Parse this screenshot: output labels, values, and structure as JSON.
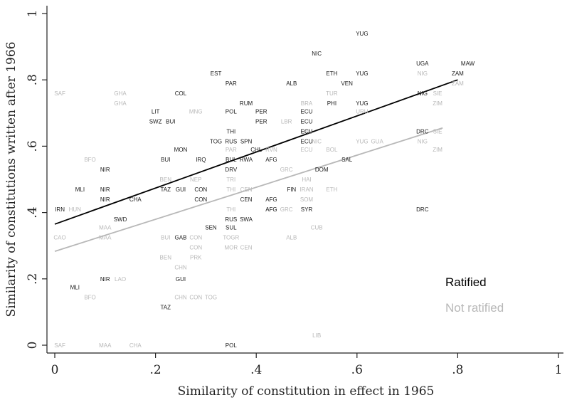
{
  "chart_data": {
    "type": "scatter",
    "title": "",
    "xlabel": "Similarity of constitution in effect in 1965",
    "ylabel": "Similarity of constitutions written after 1966",
    "xlim": [
      0,
      1
    ],
    "ylim": [
      0,
      1
    ],
    "x_ticks": [
      0,
      0.2,
      0.4,
      0.6,
      0.8,
      1
    ],
    "x_tick_labels": [
      "0",
      ".2",
      ".4",
      ".6",
      ".8",
      "1"
    ],
    "y_ticks": [
      0,
      0.2,
      0.4,
      0.6,
      0.8,
      1
    ],
    "y_tick_labels": [
      "0",
      ".2",
      ".4",
      ".6",
      ".8",
      "1"
    ],
    "legend_position": "bottom-right",
    "legend": [
      {
        "label": "Ratified",
        "color": "#000000"
      },
      {
        "label": "Not ratified",
        "color": "#b8b8b8"
      }
    ],
    "series": [
      {
        "name": "Ratified",
        "color": "#1a1a1a",
        "fit_line": {
          "x": [
            0,
            0.8
          ],
          "y": [
            0.365,
            0.8
          ]
        },
        "points": [
          {
            "label": "YUG",
            "x": 0.61,
            "y": 0.94
          },
          {
            "label": "NIC",
            "x": 0.52,
            "y": 0.88
          },
          {
            "label": "UGA",
            "x": 0.73,
            "y": 0.85
          },
          {
            "label": "MAW",
            "x": 0.82,
            "y": 0.85
          },
          {
            "label": "EST",
            "x": 0.32,
            "y": 0.82
          },
          {
            "label": "ETH",
            "x": 0.55,
            "y": 0.82
          },
          {
            "label": "YUG",
            "x": 0.61,
            "y": 0.82
          },
          {
            "label": "ZAM",
            "x": 0.8,
            "y": 0.82
          },
          {
            "label": "PAR",
            "x": 0.35,
            "y": 0.79
          },
          {
            "label": "ALB",
            "x": 0.47,
            "y": 0.79
          },
          {
            "label": "VEN",
            "x": 0.58,
            "y": 0.79
          },
          {
            "label": "COL",
            "x": 0.25,
            "y": 0.76
          },
          {
            "label": "NIG",
            "x": 0.73,
            "y": 0.76
          },
          {
            "label": "RUM",
            "x": 0.38,
            "y": 0.73
          },
          {
            "label": "PHI",
            "x": 0.55,
            "y": 0.73
          },
          {
            "label": "YUG",
            "x": 0.61,
            "y": 0.73
          },
          {
            "label": "LIT",
            "x": 0.2,
            "y": 0.705
          },
          {
            "label": "POL",
            "x": 0.35,
            "y": 0.705
          },
          {
            "label": "PER",
            "x": 0.41,
            "y": 0.705
          },
          {
            "label": "ECU",
            "x": 0.5,
            "y": 0.705
          },
          {
            "label": "SWZ",
            "x": 0.2,
            "y": 0.675
          },
          {
            "label": "BUI",
            "x": 0.23,
            "y": 0.675
          },
          {
            "label": "PER",
            "x": 0.41,
            "y": 0.675
          },
          {
            "label": "ECU",
            "x": 0.5,
            "y": 0.675
          },
          {
            "label": "THI",
            "x": 0.35,
            "y": 0.645
          },
          {
            "label": "ECU",
            "x": 0.5,
            "y": 0.645
          },
          {
            "label": "DRC",
            "x": 0.73,
            "y": 0.645
          },
          {
            "label": "TOG",
            "x": 0.32,
            "y": 0.615
          },
          {
            "label": "RUS",
            "x": 0.35,
            "y": 0.615
          },
          {
            "label": "SPN",
            "x": 0.38,
            "y": 0.615
          },
          {
            "label": "ECU",
            "x": 0.5,
            "y": 0.615
          },
          {
            "label": "MON",
            "x": 0.25,
            "y": 0.59
          },
          {
            "label": "CHL",
            "x": 0.4,
            "y": 0.59
          },
          {
            "label": "BUI",
            "x": 0.22,
            "y": 0.56
          },
          {
            "label": "IRQ",
            "x": 0.29,
            "y": 0.56
          },
          {
            "label": "BUL",
            "x": 0.35,
            "y": 0.56
          },
          {
            "label": "RWA",
            "x": 0.38,
            "y": 0.56
          },
          {
            "label": "AFG",
            "x": 0.43,
            "y": 0.56
          },
          {
            "label": "SAL",
            "x": 0.58,
            "y": 0.56
          },
          {
            "label": "NIR",
            "x": 0.1,
            "y": 0.53
          },
          {
            "label": "DRV",
            "x": 0.35,
            "y": 0.53
          },
          {
            "label": "DOM",
            "x": 0.53,
            "y": 0.53
          },
          {
            "label": "MLI",
            "x": 0.05,
            "y": 0.47
          },
          {
            "label": "NIR",
            "x": 0.1,
            "y": 0.47
          },
          {
            "label": "TAZ",
            "x": 0.22,
            "y": 0.47
          },
          {
            "label": "GUI",
            "x": 0.25,
            "y": 0.47
          },
          {
            "label": "CON",
            "x": 0.29,
            "y": 0.47
          },
          {
            "label": "FIN",
            "x": 0.47,
            "y": 0.47
          },
          {
            "label": "NIR",
            "x": 0.1,
            "y": 0.44
          },
          {
            "label": "CHA",
            "x": 0.16,
            "y": 0.44
          },
          {
            "label": "CON",
            "x": 0.29,
            "y": 0.44
          },
          {
            "label": "CEN",
            "x": 0.38,
            "y": 0.44
          },
          {
            "label": "AFG",
            "x": 0.43,
            "y": 0.44
          },
          {
            "label": "IRN",
            "x": 0.01,
            "y": 0.41
          },
          {
            "label": "AFG",
            "x": 0.43,
            "y": 0.41
          },
          {
            "label": "SYR",
            "x": 0.5,
            "y": 0.41
          },
          {
            "label": "DRC",
            "x": 0.73,
            "y": 0.41
          },
          {
            "label": "SWD",
            "x": 0.13,
            "y": 0.38
          },
          {
            "label": "RUS",
            "x": 0.35,
            "y": 0.38
          },
          {
            "label": "SWA",
            "x": 0.38,
            "y": 0.38
          },
          {
            "label": "SEN",
            "x": 0.31,
            "y": 0.355
          },
          {
            "label": "SUL",
            "x": 0.35,
            "y": 0.355
          },
          {
            "label": "GAB",
            "x": 0.25,
            "y": 0.325
          },
          {
            "label": "NIR",
            "x": 0.1,
            "y": 0.2
          },
          {
            "label": "GUI",
            "x": 0.25,
            "y": 0.2
          },
          {
            "label": "MLI",
            "x": 0.04,
            "y": 0.175
          },
          {
            "label": "TAZ",
            "x": 0.22,
            "y": 0.115
          },
          {
            "label": "POL",
            "x": 0.35,
            "y": 0
          }
        ]
      },
      {
        "name": "Not ratified",
        "color": "#b8b8b8",
        "fit_line": {
          "x": [
            0,
            0.77
          ],
          "y": [
            0.283,
            0.655
          ]
        },
        "points": [
          {
            "label": "NIG",
            "x": 0.73,
            "y": 0.82
          },
          {
            "label": "ZAM",
            "x": 0.8,
            "y": 0.79
          },
          {
            "label": "SAF",
            "x": 0.01,
            "y": 0.76
          },
          {
            "label": "GHA",
            "x": 0.13,
            "y": 0.76
          },
          {
            "label": "TUR",
            "x": 0.55,
            "y": 0.76
          },
          {
            "label": "SIE",
            "x": 0.76,
            "y": 0.76
          },
          {
            "label": "GHA",
            "x": 0.13,
            "y": 0.73
          },
          {
            "label": "BRA",
            "x": 0.5,
            "y": 0.73
          },
          {
            "label": "ZIM",
            "x": 0.76,
            "y": 0.73
          },
          {
            "label": "MNG",
            "x": 0.28,
            "y": 0.705
          },
          {
            "label": "URU",
            "x": 0.61,
            "y": 0.705
          },
          {
            "label": "LBR",
            "x": 0.46,
            "y": 0.675
          },
          {
            "label": "PAN",
            "x": 0.5,
            "y": 0.645
          },
          {
            "label": "SIE",
            "x": 0.76,
            "y": 0.645
          },
          {
            "label": "NIC",
            "x": 0.52,
            "y": 0.615
          },
          {
            "label": "YUG",
            "x": 0.61,
            "y": 0.615
          },
          {
            "label": "GUA",
            "x": 0.64,
            "y": 0.615
          },
          {
            "label": "NIG",
            "x": 0.73,
            "y": 0.615
          },
          {
            "label": "PAR",
            "x": 0.35,
            "y": 0.59
          },
          {
            "label": "RVN",
            "x": 0.43,
            "y": 0.59
          },
          {
            "label": "ECU",
            "x": 0.5,
            "y": 0.59
          },
          {
            "label": "BOL",
            "x": 0.55,
            "y": 0.59
          },
          {
            "label": "ZIM",
            "x": 0.76,
            "y": 0.59
          },
          {
            "label": "BFO",
            "x": 0.07,
            "y": 0.56
          },
          {
            "label": "GRC",
            "x": 0.46,
            "y": 0.53
          },
          {
            "label": "BEN",
            "x": 0.22,
            "y": 0.5
          },
          {
            "label": "NEP",
            "x": 0.28,
            "y": 0.5
          },
          {
            "label": "TRI",
            "x": 0.35,
            "y": 0.5
          },
          {
            "label": "HAI",
            "x": 0.5,
            "y": 0.5
          },
          {
            "label": "THI",
            "x": 0.35,
            "y": 0.47
          },
          {
            "label": "CEN",
            "x": 0.38,
            "y": 0.47
          },
          {
            "label": "IRAN",
            "x": 0.5,
            "y": 0.47
          },
          {
            "label": "ETH",
            "x": 0.55,
            "y": 0.47
          },
          {
            "label": "SOM",
            "x": 0.5,
            "y": 0.44
          },
          {
            "label": "HUN",
            "x": 0.04,
            "y": 0.41
          },
          {
            "label": "THI",
            "x": 0.35,
            "y": 0.41
          },
          {
            "label": "AFG",
            "x": 0.43,
            "y": 0.41
          },
          {
            "label": "GRC",
            "x": 0.46,
            "y": 0.41
          },
          {
            "label": "CUB",
            "x": 0.52,
            "y": 0.355
          },
          {
            "label": "MAA",
            "x": 0.1,
            "y": 0.355
          },
          {
            "label": "CAO",
            "x": 0.01,
            "y": 0.325
          },
          {
            "label": "MAA",
            "x": 0.1,
            "y": 0.325
          },
          {
            "label": "BUI",
            "x": 0.22,
            "y": 0.325
          },
          {
            "label": "CON",
            "x": 0.28,
            "y": 0.325
          },
          {
            "label": "TOGR",
            "x": 0.35,
            "y": 0.325
          },
          {
            "label": "ALB",
            "x": 0.47,
            "y": 0.325
          },
          {
            "label": "CON",
            "x": 0.28,
            "y": 0.295
          },
          {
            "label": "MOR",
            "x": 0.35,
            "y": 0.295
          },
          {
            "label": "CEN",
            "x": 0.38,
            "y": 0.295
          },
          {
            "label": "BEN",
            "x": 0.22,
            "y": 0.265
          },
          {
            "label": "PRK",
            "x": 0.28,
            "y": 0.265
          },
          {
            "label": "CHN",
            "x": 0.25,
            "y": 0.235
          },
          {
            "label": "LAO",
            "x": 0.13,
            "y": 0.2
          },
          {
            "label": "BFO",
            "x": 0.07,
            "y": 0.145
          },
          {
            "label": "CHN",
            "x": 0.25,
            "y": 0.145
          },
          {
            "label": "CON",
            "x": 0.28,
            "y": 0.145
          },
          {
            "label": "TOG",
            "x": 0.31,
            "y": 0.145
          },
          {
            "label": "LIB",
            "x": 0.52,
            "y": 0.03
          },
          {
            "label": "SAF",
            "x": 0.01,
            "y": 0
          },
          {
            "label": "MAA",
            "x": 0.1,
            "y": 0
          },
          {
            "label": "CHA",
            "x": 0.16,
            "y": 0
          }
        ]
      }
    ]
  }
}
